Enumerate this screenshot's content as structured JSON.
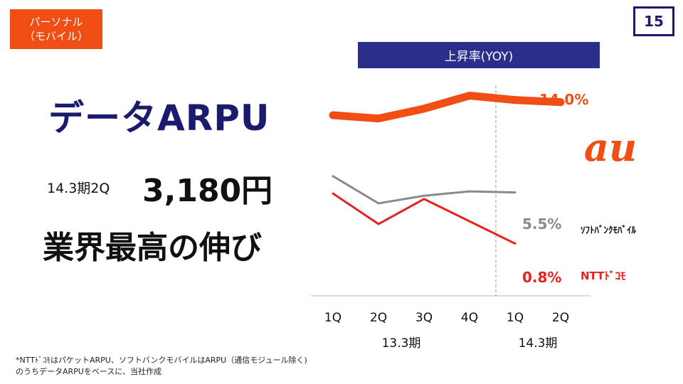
{
  "header": {
    "category_line1": "パーソナル",
    "category_line2": "（モバイル）",
    "page_number": "15"
  },
  "banner": {
    "label": "上昇率(YOY)"
  },
  "main": {
    "headline": "データARPU",
    "period": "14.3期2Q",
    "value": "3,180円",
    "tagline": "業界最高の伸び"
  },
  "chart_data": {
    "type": "line",
    "title": "上昇率(YOY)",
    "categories": [
      "1Q",
      "2Q",
      "3Q",
      "4Q",
      "1Q",
      "2Q"
    ],
    "period_groups": [
      {
        "label": "13.3期",
        "span": [
          0,
          3
        ]
      },
      {
        "label": "14.3期",
        "span": [
          4,
          5
        ]
      }
    ],
    "xlabel": "",
    "ylabel": "",
    "ylim": [
      -4,
      16
    ],
    "grid": false,
    "divider_after_index": 3,
    "series": [
      {
        "name": "au",
        "color": "#f04e15",
        "values": [
          12.6,
          12.3,
          13.2,
          14.4,
          14.0,
          13.8
        ],
        "end_label": "14.0%"
      },
      {
        "name": "ソフトバンクモバイル",
        "color": "#8a8a8a",
        "values": [
          7.0,
          4.5,
          5.2,
          5.6,
          5.5,
          null
        ],
        "end_label": "5.5%"
      },
      {
        "name": "NTTドコモ",
        "color": "#e8211c",
        "values": [
          5.4,
          2.6,
          4.9,
          null,
          0.8,
          null
        ],
        "end_label": "0.8%"
      }
    ]
  },
  "legend": {
    "au_logo_text": "au",
    "softbank_label": "ｿﾌﾄﾊﾞﾝｸﾓﾊﾞｲﾙ",
    "docomo_label": "NTTﾄﾞｺﾓ"
  },
  "footnote": {
    "line1": "*NTTﾄﾞｺﾓはパケットARPU、ソフトバンクモバイルはARPU（通信モジュール除く)",
    "line2": "のうちデータARPUをベースに、当社作成"
  }
}
